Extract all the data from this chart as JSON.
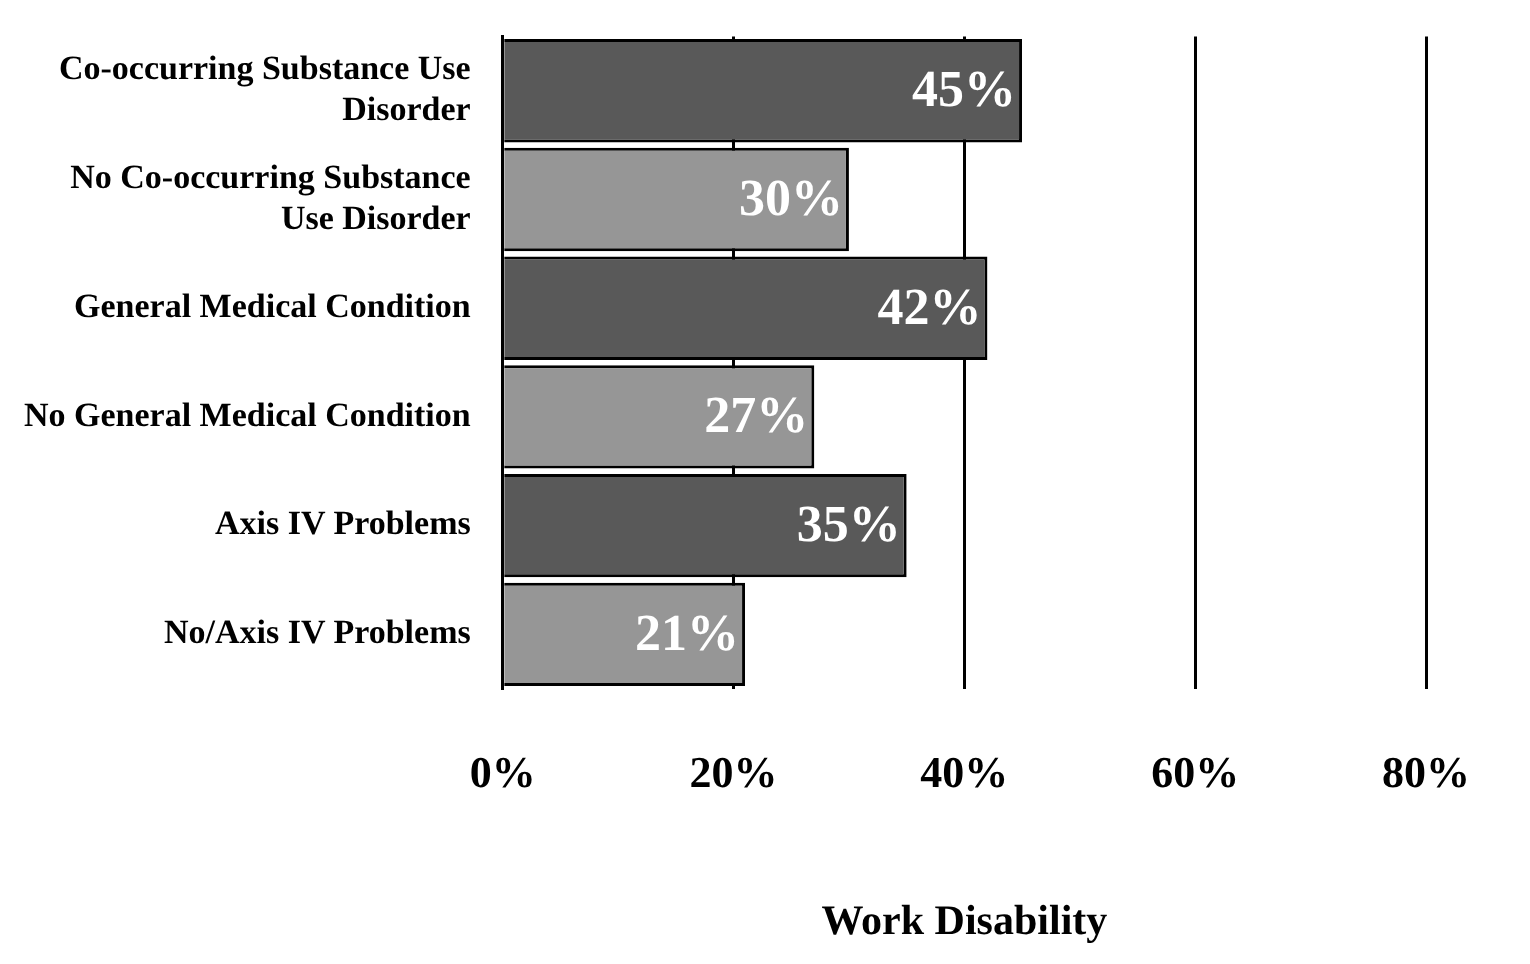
{
  "chart_data": {
    "type": "bar",
    "orientation": "horizontal",
    "xlabel": "Work Disability",
    "categories": [
      "Co-occurring Substance Use Disorder",
      "No Co-occurring Substance Use Disorder",
      "General Medical Condition",
      "No General Medical Condition",
      "Axis IV Problems",
      "No/Axis IV Problems"
    ],
    "values": [
      45,
      30,
      42,
      27,
      35,
      21
    ],
    "colors": [
      "#595959",
      "#969696",
      "#595959",
      "#969696",
      "#595959",
      "#969696"
    ],
    "value_labels": [
      "45%",
      "30%",
      "42%",
      "27%",
      "35%",
      "21%"
    ],
    "xlim": [
      0,
      80
    ],
    "xticks": [
      {
        "value": 0,
        "label": "0%"
      },
      {
        "value": 20,
        "label": "20%"
      },
      {
        "value": 40,
        "label": "40%"
      },
      {
        "value": 60,
        "label": "60%"
      },
      {
        "value": 80,
        "label": "80%"
      }
    ],
    "grid": "x",
    "legend": false
  }
}
